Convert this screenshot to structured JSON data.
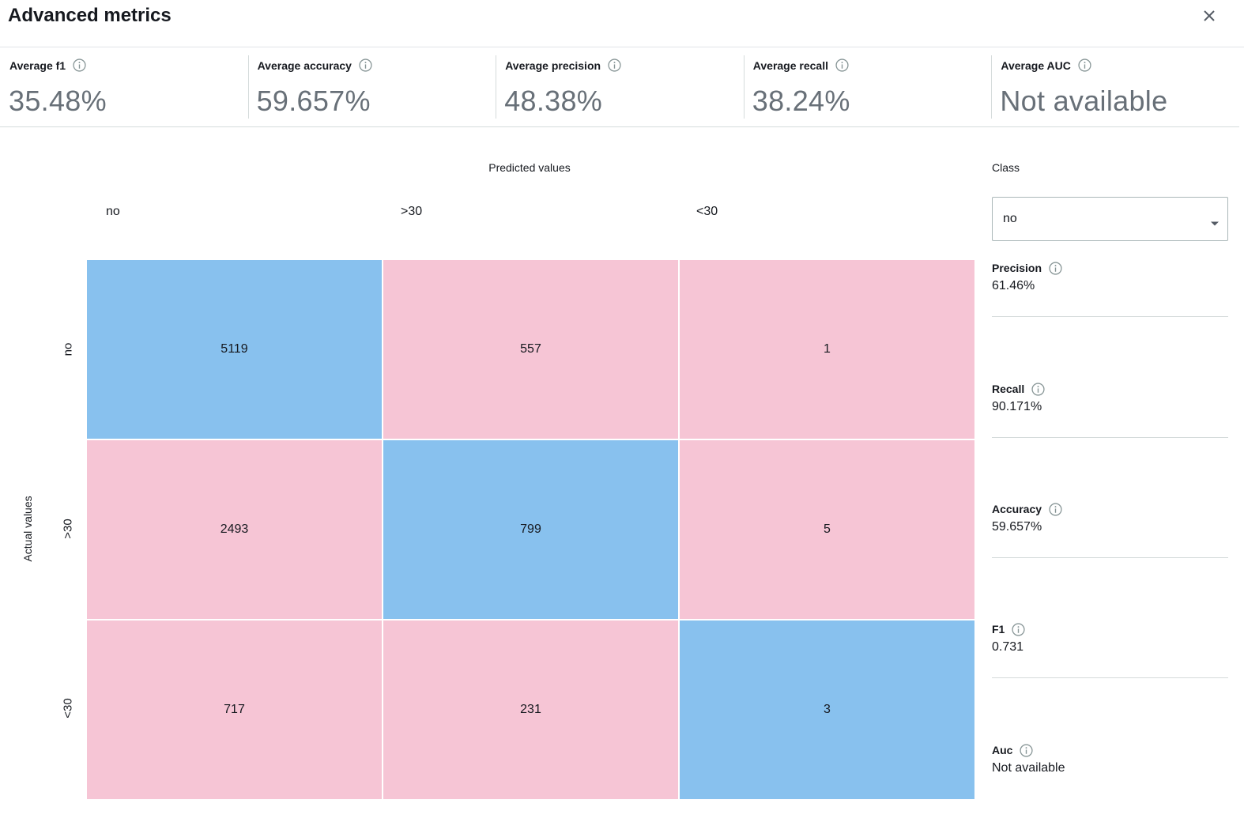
{
  "header": {
    "title": "Advanced metrics",
    "close_icon": "close-icon"
  },
  "summary_metrics": [
    {
      "label": "Average f1",
      "value": "35.48%"
    },
    {
      "label": "Average accuracy",
      "value": "59.657%"
    },
    {
      "label": "Average precision",
      "value": "48.38%"
    },
    {
      "label": "Average recall",
      "value": "38.24%"
    },
    {
      "label": "Average AUC",
      "value": "Not available"
    }
  ],
  "matrix": {
    "predicted_label": "Predicted values",
    "actual_label": "Actual values",
    "columns": [
      "no",
      ">30",
      "<30"
    ],
    "rows": [
      "no",
      ">30",
      "<30"
    ],
    "cells": [
      [
        "5119",
        "557",
        "1"
      ],
      [
        "2493",
        "799",
        "5"
      ],
      [
        "717",
        "231",
        "3"
      ]
    ],
    "colors": {
      "diagonal": "#88c1ee",
      "off_diagonal": "#f6c5d5"
    }
  },
  "class_panel": {
    "label": "Class",
    "selected": "no",
    "metrics": [
      {
        "label": "Precision",
        "value": "61.46%"
      },
      {
        "label": "Recall",
        "value": "90.171%"
      },
      {
        "label": "Accuracy",
        "value": "59.657%"
      },
      {
        "label": "F1",
        "value": "0.731"
      },
      {
        "label": "Auc",
        "value": "Not available"
      }
    ]
  }
}
